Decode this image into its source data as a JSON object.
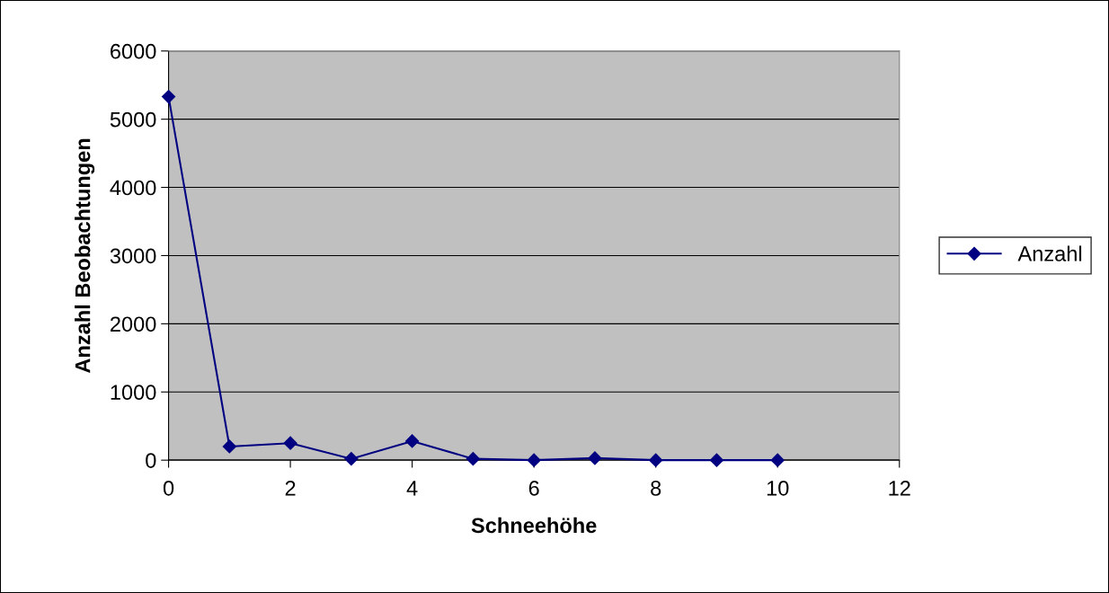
{
  "chart_data": {
    "type": "line",
    "xlabel": "Schneehöhe",
    "ylabel": "Anzahl Beobachtungen",
    "x": [
      0,
      1,
      2,
      3,
      4,
      5,
      6,
      7,
      8,
      9,
      10
    ],
    "series": [
      {
        "name": "Anzahl",
        "color": "#000080",
        "values": [
          5330,
          200,
          250,
          20,
          280,
          20,
          0,
          30,
          0,
          0,
          0
        ]
      }
    ],
    "xlim": [
      0,
      12
    ],
    "xticks": [
      0,
      2,
      4,
      6,
      8,
      10,
      12
    ],
    "ylim": [
      0,
      6000
    ],
    "yticks": [
      0,
      1000,
      2000,
      3000,
      4000,
      5000,
      6000
    ],
    "grid": "y",
    "legend": "right",
    "marker": "diamond",
    "line_style": "solid"
  }
}
